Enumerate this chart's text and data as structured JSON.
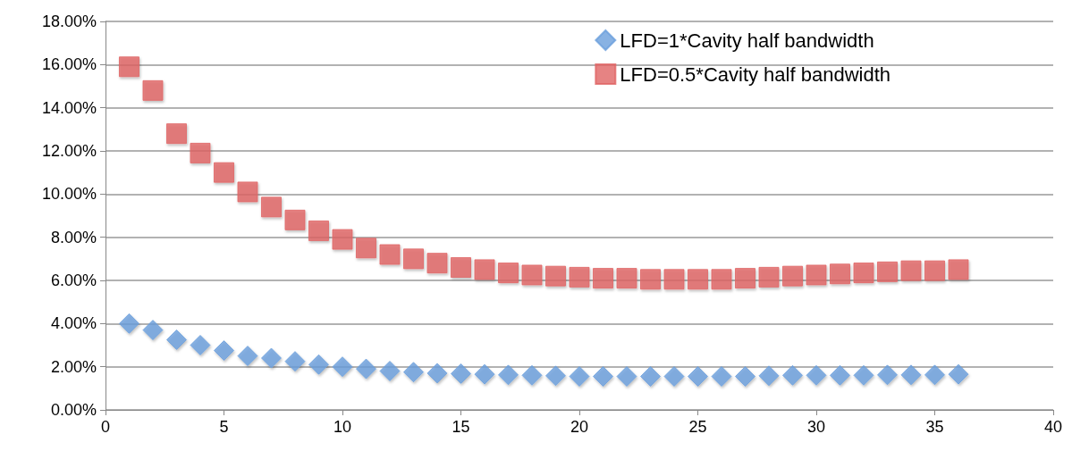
{
  "chart_data": {
    "type": "scatter",
    "x": [
      1,
      2,
      3,
      4,
      5,
      6,
      7,
      8,
      9,
      10,
      11,
      12,
      13,
      14,
      15,
      16,
      17,
      18,
      19,
      20,
      21,
      22,
      23,
      24,
      25,
      26,
      27,
      28,
      29,
      30,
      31,
      32,
      33,
      34,
      35,
      36
    ],
    "series": [
      {
        "name": "LFD=1*Cavity half bandwidth",
        "color": "#6a9fdc",
        "marker": "diamond",
        "values": [
          4.0,
          3.7,
          3.25,
          3.0,
          2.75,
          2.5,
          2.4,
          2.25,
          2.1,
          2.0,
          1.9,
          1.8,
          1.75,
          1.7,
          1.68,
          1.65,
          1.62,
          1.6,
          1.58,
          1.55,
          1.55,
          1.55,
          1.55,
          1.55,
          1.55,
          1.55,
          1.55,
          1.58,
          1.6,
          1.6,
          1.6,
          1.6,
          1.62,
          1.62,
          1.62,
          1.65
        ]
      },
      {
        "name": "LFD=0.5*Cavity half bandwidth",
        "color": "#e06464",
        "marker": "square",
        "values": [
          15.9,
          14.8,
          12.8,
          11.9,
          11.0,
          10.1,
          9.4,
          8.8,
          8.3,
          7.9,
          7.5,
          7.2,
          7.0,
          6.8,
          6.6,
          6.5,
          6.35,
          6.25,
          6.2,
          6.15,
          6.1,
          6.1,
          6.05,
          6.05,
          6.05,
          6.05,
          6.1,
          6.15,
          6.2,
          6.25,
          6.3,
          6.35,
          6.4,
          6.45,
          6.45,
          6.5
        ]
      }
    ],
    "xlim": [
      0,
      40
    ],
    "xticks": [
      0,
      5,
      10,
      15,
      20,
      25,
      30,
      35,
      40
    ],
    "ylim": [
      0,
      18
    ],
    "yticks": [
      {
        "value": 0,
        "label": "0.00%"
      },
      {
        "value": 2,
        "label": "2.00%"
      },
      {
        "value": 4,
        "label": "4.00%"
      },
      {
        "value": 6,
        "label": "6.00%"
      },
      {
        "value": 8,
        "label": "8.00%"
      },
      {
        "value": 10,
        "label": "10.00%"
      },
      {
        "value": 12,
        "label": "12.00%"
      },
      {
        "value": 14,
        "label": "14.00%"
      },
      {
        "value": 16,
        "label": "16.00%"
      },
      {
        "value": 18,
        "label": "18.00%"
      }
    ],
    "grid": "y",
    "legend": "top right"
  }
}
